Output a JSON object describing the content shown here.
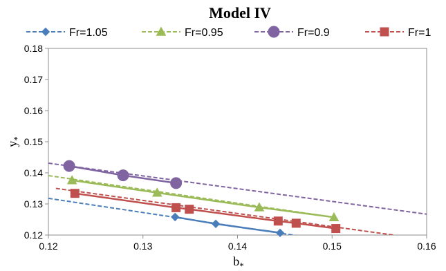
{
  "chart_data": {
    "type": "line",
    "title": "Model IV",
    "xlabel": "b",
    "xlabel_sub": "*",
    "ylabel": "y",
    "ylabel_sub": "*",
    "xlim": [
      0.12,
      0.16
    ],
    "ylim": [
      0.12,
      0.18
    ],
    "x_ticks": [
      "0.12",
      "0.13",
      "0.14",
      "0.15",
      "0.16"
    ],
    "y_ticks": [
      "0.12",
      "0.13",
      "0.14",
      "0.15",
      "0.16",
      "0.17",
      "0.18"
    ],
    "grid": false,
    "legend_position": "top",
    "series": [
      {
        "name": "Fr=1.05",
        "color": "#4a7ebb",
        "marker": "diamond",
        "points": [
          [
            0.1334,
            0.1258
          ],
          [
            0.1377,
            0.1236
          ],
          [
            0.1445,
            0.1207
          ]
        ],
        "trend": [
          [
            0.12,
            0.1318
          ],
          [
            0.1485,
            0.1188
          ]
        ]
      },
      {
        "name": "Fr=0.95",
        "color": "#9bbb59",
        "marker": "triangle",
        "points": [
          [
            0.1225,
            0.1376
          ],
          [
            0.1315,
            0.1336
          ],
          [
            0.1423,
            0.1289
          ],
          [
            0.1502,
            0.1257
          ]
        ],
        "trend": [
          [
            0.12,
            0.1391
          ],
          [
            0.1502,
            0.1257
          ]
        ]
      },
      {
        "name": "Fr=0.9",
        "color": "#8064a2",
        "marker": "circle",
        "points": [
          [
            0.1222,
            0.1422
          ],
          [
            0.1279,
            0.1392
          ],
          [
            0.1335,
            0.1367
          ]
        ],
        "trend": [
          [
            0.12,
            0.1431
          ],
          [
            0.16,
            0.1267
          ]
        ]
      },
      {
        "name": "Fr=1",
        "color": "#c0504d",
        "marker": "square",
        "points": [
          [
            0.1228,
            0.1334
          ],
          [
            0.1335,
            0.1288
          ],
          [
            0.1349,
            0.1283
          ],
          [
            0.1443,
            0.1245
          ],
          [
            0.1462,
            0.1238
          ],
          [
            0.1504,
            0.1221
          ]
        ],
        "trend": [
          [
            0.1208,
            0.135
          ],
          [
            0.1565,
            0.12
          ]
        ]
      }
    ]
  }
}
